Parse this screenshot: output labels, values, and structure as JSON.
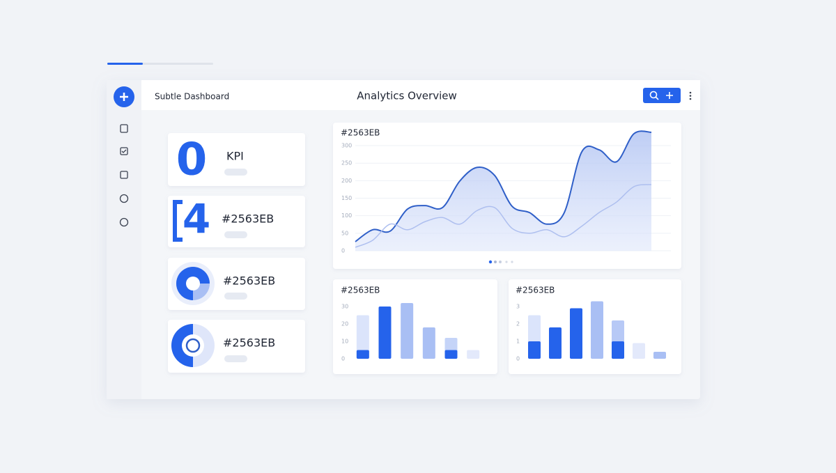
{
  "header": {
    "app_name": "Subtle Dashboard",
    "title": "Analytics Overview"
  },
  "kpis": [
    {
      "value": 0,
      "label": "KPI"
    },
    {
      "value": 4,
      "label": "#2563EB"
    },
    {
      "label": "#2563EB"
    },
    {
      "label": "#2563EB"
    }
  ],
  "charts": [
    {
      "type": "area",
      "title": "#2563EB",
      "ylim": [
        0,
        340
      ],
      "yticks": [
        0,
        50,
        100,
        150,
        200,
        250,
        300
      ],
      "grid": true,
      "series": [
        {
          "color": "#2f5fc8",
          "values": [
            26,
            60,
            56,
            119,
            129,
            123,
            199,
            238,
            215,
            127,
            109,
            76,
            109,
            282,
            288,
            254,
            334,
            338
          ]
        },
        {
          "color": "#aebfef",
          "values": [
            10,
            30,
            76,
            60,
            83,
            95,
            76,
            115,
            123,
            64,
            50,
            60,
            40,
            70,
            109,
            139,
            183,
            189
          ]
        }
      ]
    },
    {
      "type": "bar",
      "title": "#2563EB",
      "ylim": [
        0,
        35
      ],
      "yticks": [
        0,
        10,
        20,
        30
      ],
      "grid": false,
      "series": [
        {
          "colors": [
            "#dbe4fb",
            "#dbe4fb",
            "#a9bff4",
            "#a9bff4",
            "#c5d4f8",
            "#e3e9fb"
          ],
          "values": [
            25,
            null,
            32,
            18,
            12,
            5
          ]
        },
        {
          "colors": [
            "#2563eb",
            "#2563eb",
            "#2563eb",
            "#2563eb",
            "#2563eb",
            "#2563eb"
          ],
          "values": [
            5,
            30,
            null,
            null,
            5,
            null
          ]
        }
      ]
    },
    {
      "type": "bar",
      "title": "#2563EB",
      "ylim": [
        0,
        3.5
      ],
      "yticks": [
        0,
        1,
        2,
        3
      ],
      "grid": false,
      "series": [
        {
          "colors": [
            "#dbe4fb",
            "#dbe4fb",
            "#dbe4fb",
            "#a9bff4",
            "#b7c9f6",
            "#e3e9fb",
            "#a9bff4"
          ],
          "values": [
            2.5,
            null,
            null,
            3.3,
            2.2,
            0.9,
            0.4
          ]
        },
        {
          "colors": [
            "#2563eb",
            "#2563eb",
            "#2563eb",
            "#2563eb",
            "#2563eb",
            "#2563eb",
            "#2563eb"
          ],
          "values": [
            1,
            1.8,
            2.9,
            null,
            1,
            null,
            null
          ]
        }
      ]
    }
  ]
}
